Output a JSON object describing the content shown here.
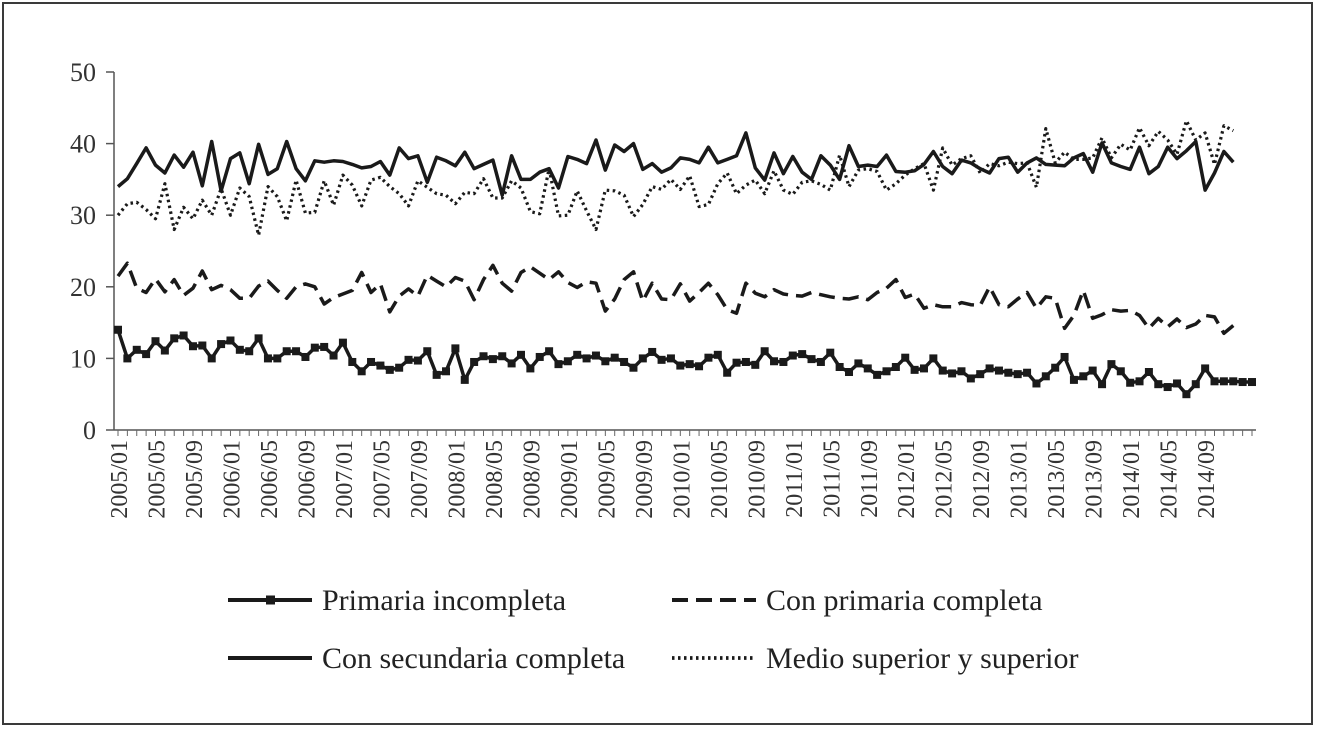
{
  "chart_data": {
    "type": "line",
    "title": "",
    "xlabel": "",
    "ylabel": "",
    "ylim": [
      0,
      50
    ],
    "yticks": [
      "0",
      "10",
      "20",
      "30",
      "40",
      "50"
    ],
    "x_tick_labels": [
      "2005/01",
      "2005/05",
      "2005/09",
      "2006/01",
      "2006/05",
      "2006/09",
      "2007/01",
      "2007/05",
      "2007/09",
      "2008/01",
      "2008/05",
      "2008/09",
      "2009/01",
      "2009/05",
      "2009/09",
      "2010/01",
      "2010/05",
      "2010/09",
      "2011/01",
      "2011/05",
      "2011/09",
      "2012/01",
      "2012/05",
      "2012/09",
      "2013/01",
      "2013/05",
      "2013/09",
      "2014/01",
      "2014/05",
      "2014/09"
    ],
    "grid": false,
    "legend_position": "bottom",
    "period_start": "2005/01",
    "period_end": "2014/12",
    "series": [
      {
        "name": "Primaria incompleta",
        "style": "solid-square-markers",
        "color": "#1a1a1a",
        "values": [
          14.0,
          10.0,
          11.2,
          10.6,
          12.4,
          11.1,
          12.8,
          13.2,
          11.7,
          11.8,
          10.0,
          12.0,
          12.5,
          11.2,
          11.0,
          12.8,
          10.0,
          10.0,
          11.0,
          11.0,
          10.2,
          11.5,
          11.6,
          10.4,
          12.2,
          9.5,
          8.2,
          9.5,
          9.0,
          8.4,
          8.7,
          9.8,
          9.7,
          11.0,
          7.7,
          8.2,
          11.4,
          7.0,
          9.5,
          10.3,
          9.9,
          10.3,
          9.3,
          10.5,
          8.6,
          10.2,
          11.0,
          9.2,
          9.6,
          10.5,
          10.0,
          10.4,
          9.6,
          10.1,
          9.5,
          8.7,
          10.0,
          10.9,
          9.8,
          10.0,
          9.0,
          9.2,
          8.9,
          10.1,
          10.5,
          8.0,
          9.4,
          9.5,
          9.1,
          11.0,
          9.6,
          9.5,
          10.4,
          10.6,
          9.9,
          9.5,
          10.8,
          8.8,
          8.1,
          9.3,
          8.6,
          7.7,
          8.2,
          8.8,
          10.1,
          8.4,
          8.6,
          10.0,
          8.3,
          7.9,
          8.2,
          7.2,
          7.8,
          8.6,
          8.3,
          8.0,
          7.8,
          8.0,
          6.5,
          7.5,
          8.7,
          10.2,
          7.0,
          7.5,
          8.3,
          6.4,
          9.2,
          8.2,
          6.6,
          6.8,
          8.1,
          6.4,
          6.0,
          6.5,
          5.0,
          6.4,
          8.6,
          6.8,
          6.8,
          6.8,
          6.7,
          6.7
        ]
      },
      {
        "name": "Con primaria completa",
        "style": "dashed",
        "color": "#1a1a1a",
        "values": [
          21.5,
          23.3,
          19.8,
          19.2,
          21.1,
          19.3,
          21.0,
          18.8,
          19.8,
          22.2,
          19.6,
          20.2,
          19.6,
          18.4,
          18.4,
          20.1,
          20.8,
          19.5,
          18.4,
          20.0,
          20.4,
          20.0,
          17.6,
          18.5,
          19.0,
          19.5,
          22.0,
          19.2,
          20.4,
          16.5,
          18.7,
          19.7,
          18.7,
          21.6,
          20.8,
          20.0,
          21.3,
          20.8,
          18.2,
          21.0,
          23.0,
          20.5,
          19.4,
          22.0,
          22.8,
          21.9,
          21.0,
          22.1,
          20.6,
          19.9,
          20.7,
          20.5,
          16.6,
          18.3,
          21.0,
          22.1,
          18.0,
          20.5,
          18.3,
          18.2,
          20.4,
          18.0,
          19.2,
          20.5,
          18.9,
          16.8,
          16.3,
          20.5,
          19.1,
          18.6,
          19.6,
          19.0,
          18.8,
          18.7,
          19.2,
          18.9,
          18.6,
          18.4,
          18.3,
          18.6,
          18.2,
          19.2,
          19.8,
          21.0,
          18.5,
          19.0,
          17.0,
          17.5,
          17.2,
          17.2,
          17.8,
          17.5,
          17.4,
          20.0,
          17.5,
          17.2,
          18.3,
          19.2,
          17.0,
          18.6,
          18.4,
          14.2,
          16.0,
          19.5,
          15.6,
          16.1,
          16.8,
          16.6,
          16.7,
          16.0,
          14.2,
          15.6,
          14.4,
          15.5,
          14.3,
          14.8,
          16.0,
          15.8,
          13.5,
          14.6
        ]
      },
      {
        "name": "Con secundaria completa",
        "style": "solid",
        "color": "#1a1a1a",
        "values": [
          34.0,
          35.1,
          37.2,
          39.4,
          37.0,
          35.9,
          38.4,
          36.7,
          38.8,
          34.1,
          40.3,
          33.4,
          37.9,
          38.7,
          34.4,
          39.9,
          35.7,
          36.5,
          40.3,
          36.5,
          34.8,
          37.6,
          37.4,
          37.6,
          37.5,
          37.1,
          36.6,
          36.8,
          37.5,
          35.6,
          39.4,
          37.9,
          38.3,
          34.6,
          38.1,
          37.6,
          36.9,
          38.8,
          36.5,
          37.1,
          37.7,
          32.8,
          38.3,
          35.0,
          35.0,
          36.0,
          36.5,
          33.8,
          38.2,
          37.8,
          37.2,
          40.5,
          36.3,
          39.8,
          38.9,
          40.0,
          36.4,
          37.2,
          36.0,
          36.6,
          38.0,
          37.8,
          37.3,
          39.5,
          37.3,
          37.8,
          38.3,
          41.5,
          36.6,
          34.9,
          38.7,
          35.8,
          38.2,
          36.0,
          35.0,
          38.3,
          37.0,
          35.0,
          39.7,
          36.8,
          37.0,
          36.8,
          38.4,
          36.1,
          36.0,
          36.2,
          37.1,
          38.9,
          36.8,
          35.8,
          37.7,
          37.3,
          36.5,
          35.9,
          37.9,
          38.1,
          36.0,
          37.3,
          38.0,
          37.1,
          37.0,
          36.9,
          38.0,
          38.6,
          36.0,
          40.1,
          37.3,
          36.8,
          36.4,
          39.5,
          35.8,
          36.8,
          39.5,
          37.9,
          39.0,
          40.3,
          33.5,
          35.9,
          38.9,
          37.4
        ]
      },
      {
        "name": "Medio superior y superior",
        "style": "dotted",
        "color": "#1a1a1a",
        "values": [
          30.0,
          31.6,
          31.8,
          30.8,
          29.5,
          34.4,
          28.0,
          31.1,
          29.5,
          32.1,
          30.0,
          33.7,
          30.0,
          33.8,
          32.6,
          27.2,
          34.0,
          32.6,
          29.2,
          34.9,
          30.3,
          30.4,
          34.8,
          31.4,
          35.6,
          34.2,
          31.3,
          34.9,
          35.3,
          34.0,
          33.0,
          31.3,
          34.8,
          33.9,
          33.0,
          32.8,
          31.6,
          33.2,
          33.0,
          35.1,
          32.4,
          32.4,
          34.8,
          33.8,
          30.5,
          30.2,
          36.5,
          29.9,
          30.0,
          33.4,
          30.6,
          28.0,
          33.5,
          33.4,
          32.8,
          29.8,
          31.5,
          34.0,
          33.6,
          35.0,
          33.6,
          35.5,
          31.2,
          31.5,
          34.4,
          35.9,
          33.0,
          34.2,
          34.9,
          33.0,
          36.2,
          33.5,
          32.9,
          34.6,
          34.8,
          34.3,
          33.5,
          38.4,
          34.0,
          36.3,
          36.5,
          36.1,
          33.5,
          34.4,
          35.6,
          36.5,
          37.2,
          33.5,
          39.4,
          37.0,
          37.9,
          38.3,
          35.9,
          37.2,
          36.9,
          37.4,
          37.2,
          37.3,
          33.9,
          42.1,
          37.3,
          38.8,
          37.8,
          37.8,
          38.0,
          40.8,
          38.0,
          39.9,
          39.1,
          42.2,
          39.7,
          41.7,
          40.5,
          38.5,
          43.2,
          40.5,
          41.5,
          37.1,
          42.5,
          41.8
        ]
      }
    ]
  }
}
